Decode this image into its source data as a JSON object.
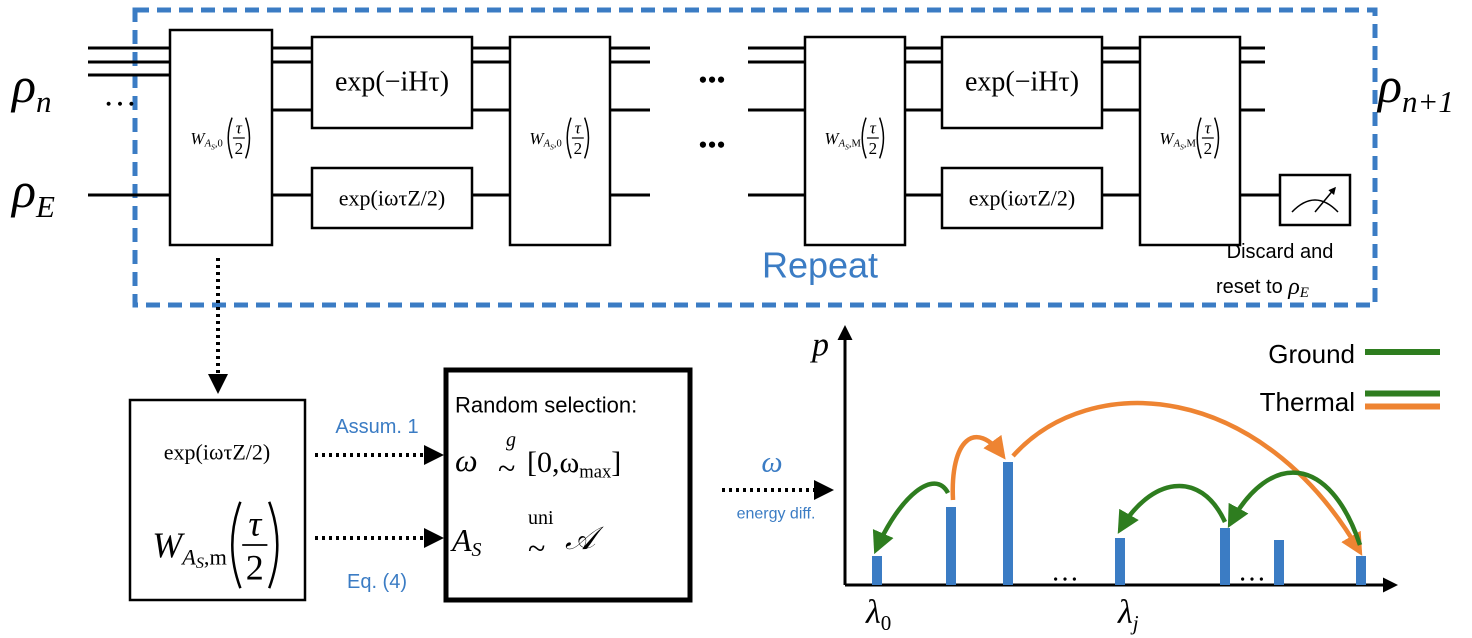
{
  "circuit": {
    "input": {
      "state": "ρ",
      "sub": "n"
    },
    "environment": {
      "state": "ρ",
      "sub": "E"
    },
    "output": {
      "state": "ρ",
      "sub": "n+1"
    },
    "input_ellipsis": "…",
    "w_gates": [
      {
        "op": "W",
        "sub": "A",
        "subsub": "S",
        "index": ",0",
        "num": "τ",
        "den": "2"
      },
      {
        "op": "W",
        "sub": "A",
        "subsub": "S",
        "index": ",0",
        "num": "τ",
        "den": "2"
      },
      {
        "op": "W",
        "sub": "A",
        "subsub": "S",
        "index": ",M",
        "num": "τ",
        "den": "2"
      },
      {
        "op": "W",
        "sub": "A",
        "subsub": "S",
        "index": ",M",
        "num": "τ",
        "den": "2"
      }
    ],
    "unitaries": [
      {
        "hamiltonian": "exp(−iHτ)",
        "environment": "exp(iωτZ/2)"
      },
      {
        "hamiltonian": "exp(−iHτ)",
        "environment": "exp(iωτZ/2)"
      }
    ],
    "gap_dots": [
      "•••",
      "•••"
    ],
    "repeat_label": "Repeat",
    "discard_note": {
      "line1": "Discard and",
      "line2": "reset to ",
      "state": "ρ",
      "sub": "E"
    }
  },
  "expansion": {
    "env_gate": "exp(iωτZ/2)",
    "w_gate": {
      "op": "W",
      "sub": "A",
      "subsub": "S",
      "index": ",m",
      "num": "τ",
      "den": "2"
    },
    "assumption_label": "Assum. 1",
    "equation_label": "Eq. (4)"
  },
  "selection": {
    "title": "Random selection:",
    "omega": {
      "var": "ω",
      "sim": "~",
      "dist": "g",
      "range": "[0,ω",
      "range_sub": "max",
      "close": "]"
    },
    "operator": {
      "var": "A",
      "sub": "S",
      "sim": "~",
      "dist": "uni",
      "set": "𝒜"
    }
  },
  "output_arrow": {
    "symbol": "ω",
    "label": "energy diff."
  },
  "spectrum": {
    "y_axis_label": "p",
    "x_labels": [
      {
        "symbol": "λ",
        "sub": "0"
      },
      {
        "symbol": "λ",
        "sub": "j"
      }
    ],
    "ellipses": [
      "…",
      "…"
    ],
    "legend": [
      {
        "name": "Ground",
        "colors": [
          "#2e7d1f"
        ]
      },
      {
        "name": "Thermal",
        "colors": [
          "#2e7d1f",
          "#ee8432"
        ]
      }
    ]
  }
}
